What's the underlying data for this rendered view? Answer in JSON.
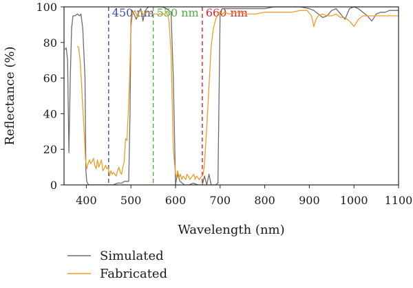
{
  "chart_data": {
    "type": "line",
    "xlabel": "Wavelength (nm)",
    "ylabel": "Reflectance (%)",
    "xlim": [
      350,
      1100
    ],
    "ylim": [
      0,
      100
    ],
    "x_ticks": [
      "400",
      "500",
      "600",
      "700",
      "800",
      "900",
      "1000",
      "1100"
    ],
    "y_ticks": [
      "0",
      "20",
      "40",
      "60",
      "80",
      "100"
    ],
    "legend_position": "bottom-left",
    "reference_lines": [
      {
        "x": 450,
        "label": "450 nm",
        "color": "#3a50a8"
      },
      {
        "x": 550,
        "label": "550 nm",
        "color": "#4fae3a"
      },
      {
        "x": 660,
        "label": "660 nm",
        "color": "#e0202a"
      }
    ],
    "series": [
      {
        "name": "Simulated",
        "color": "#6b6b6b",
        "x": [
          352,
          355,
          358,
          361,
          364,
          367,
          370,
          375,
          380,
          385,
          388,
          392,
          397,
          399,
          401,
          405,
          410,
          420,
          430,
          440,
          445,
          450,
          460,
          470,
          480,
          485,
          490,
          495,
          498,
          500,
          503,
          507,
          512,
          517,
          522,
          527,
          530,
          535,
          540,
          545,
          550,
          555,
          560,
          570,
          580,
          590,
          595,
          600,
          602,
          605,
          610,
          620,
          630,
          640,
          650,
          660,
          665,
          670,
          675,
          680,
          685,
          690,
          695,
          700,
          705,
          710,
          720,
          740,
          760,
          780,
          800,
          820,
          840,
          860,
          880,
          900,
          910,
          920,
          930,
          940,
          950,
          960,
          970,
          980,
          990,
          1000,
          1010,
          1020,
          1030,
          1040,
          1050,
          1060,
          1070,
          1080,
          1090,
          1100
        ],
        "y": [
          76,
          77,
          70,
          18,
          60,
          88,
          95,
          95,
          96,
          95,
          96,
          88,
          60,
          8,
          2,
          0,
          0,
          0,
          0,
          0,
          0,
          0,
          0,
          1,
          1,
          2,
          2,
          2,
          40,
          92,
          98,
          96,
          93,
          97,
          99,
          92,
          96,
          99,
          100,
          100,
          100,
          100,
          100,
          100,
          99,
          97,
          60,
          0,
          3,
          6,
          2,
          0,
          0,
          1,
          0,
          0,
          5,
          0,
          6,
          0,
          0,
          0,
          1,
          97,
          99,
          99,
          99,
          99,
          99,
          99,
          99,
          100,
          100,
          100,
          100,
          99,
          98,
          96,
          94,
          95,
          98,
          99,
          96,
          93,
          99,
          100,
          99,
          97,
          95,
          92,
          96,
          97,
          97,
          98,
          98,
          98
        ]
      },
      {
        "name": "Fabricated",
        "color": "#f39a26",
        "x": [
          380,
          383,
          386,
          389,
          392,
          395,
          398,
          401,
          404,
          407,
          410,
          413,
          416,
          419,
          422,
          425,
          428,
          431,
          434,
          437,
          440,
          443,
          446,
          449,
          452,
          455,
          458,
          461,
          464,
          467,
          470,
          473,
          476,
          479,
          482,
          485,
          488,
          491,
          494,
          497,
          500,
          503,
          506,
          509,
          512,
          515,
          518,
          521,
          524,
          527,
          530,
          535,
          540,
          545,
          550,
          555,
          560,
          565,
          570,
          575,
          580,
          585,
          590,
          595,
          600,
          602,
          605,
          608,
          611,
          614,
          617,
          620,
          623,
          626,
          629,
          632,
          635,
          638,
          641,
          644,
          647,
          650,
          653,
          656,
          659,
          662,
          665,
          670,
          675,
          680,
          685,
          690,
          695,
          700,
          705,
          710,
          720,
          740,
          760,
          780,
          800,
          820,
          840,
          860,
          880,
          895,
          905,
          910,
          915,
          920,
          930,
          940,
          950,
          960,
          970,
          980,
          990,
          1000,
          1010,
          1020,
          1030,
          1040,
          1050,
          1060,
          1070,
          1080,
          1090,
          1100
        ],
        "y": [
          78,
          77,
          70,
          58,
          44,
          30,
          15,
          9,
          12,
          14,
          12,
          13,
          15,
          11,
          9,
          14,
          10,
          12,
          14,
          8,
          9,
          11,
          9,
          10,
          5,
          8,
          6,
          7,
          6,
          5,
          8,
          10,
          7,
          6,
          10,
          13,
          26,
          25,
          40,
          60,
          88,
          95,
          97,
          98,
          96,
          94,
          97,
          98,
          97,
          96,
          96,
          97,
          97,
          96,
          96,
          96,
          96,
          96,
          96,
          96,
          97,
          93,
          75,
          20,
          6,
          4,
          8,
          4,
          6,
          3,
          5,
          4,
          3,
          6,
          5,
          3,
          4,
          5,
          6,
          3,
          5,
          4,
          3,
          4,
          5,
          6,
          12,
          33,
          55,
          78,
          88,
          93,
          96,
          97,
          96,
          97,
          96,
          97,
          96,
          96,
          97,
          97,
          97,
          97,
          98,
          98,
          95,
          89,
          93,
          95,
          96,
          95,
          95,
          96,
          94,
          94,
          92,
          89,
          93,
          95,
          95,
          95,
          95,
          95,
          95,
          95,
          95,
          95
        ]
      }
    ]
  }
}
